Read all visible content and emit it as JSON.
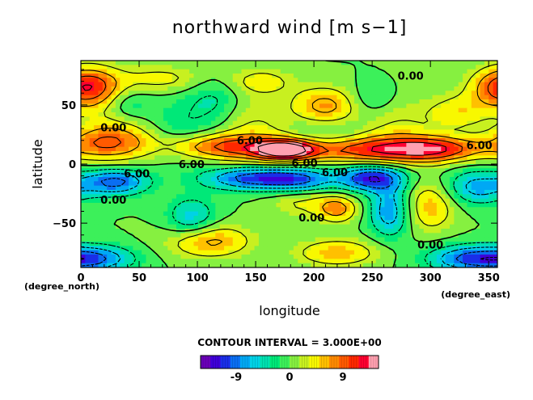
{
  "chart_data": {
    "type": "heatmap",
    "title": "northward wind [m s−1]",
    "xlabel": "longitude",
    "ylabel": "latitude",
    "x_unit": "(degree_north)",
    "x_unit_right": "(degree_east)",
    "xlim": [
      0,
      357.5
    ],
    "ylim": [
      -87.5,
      87.5
    ],
    "xticks": [
      0,
      50,
      100,
      150,
      200,
      250,
      300,
      350
    ],
    "yticks": [
      -50,
      0,
      50
    ],
    "contour_interval_text": "CONTOUR INTERVAL = 3.000E+00",
    "contour_labels": [
      {
        "text": "0.00",
        "x": 283,
        "y": 75
      },
      {
        "text": "0.00",
        "x": 28,
        "y": 31
      },
      {
        "text": "6.00",
        "x": 145,
        "y": 20
      },
      {
        "text": "6.00",
        "x": 342,
        "y": 16
      },
      {
        "text": "6.00",
        "x": 192,
        "y": 1
      },
      {
        "text": "6.00",
        "x": 218,
        "y": -7
      },
      {
        "text": "6.00",
        "x": 95,
        "y": 0
      },
      {
        "text": "6.00",
        "x": 48,
        "y": -8
      },
      {
        "text": "0.00",
        "x": 28,
        "y": -30
      },
      {
        "text": "0.00",
        "x": 198,
        "y": -45
      },
      {
        "text": "0.00",
        "x": 300,
        "y": -68
      }
    ],
    "colorbar": {
      "tick_labels": [
        "-9",
        "0",
        "9"
      ],
      "tick_values": [
        -9,
        0,
        9
      ],
      "min": -15,
      "max": 15,
      "colors": [
        "#6a00b8",
        "#3f00d8",
        "#1a2ee8",
        "#0a6ef2",
        "#00a8f4",
        "#00d2e6",
        "#00e0b0",
        "#00e878",
        "#3cf05a",
        "#86f040",
        "#c8f020",
        "#f8f800",
        "#ffc000",
        "#ff8a00",
        "#ff5a00",
        "#ff2800",
        "#ff0030",
        "#ffa0b0"
      ]
    },
    "field_centers": [
      {
        "x": 5,
        "y": 65,
        "a": 12,
        "sx": 20,
        "sy": 12
      },
      {
        "x": 70,
        "y": 72,
        "a": 4,
        "sx": 25,
        "sy": 8
      },
      {
        "x": 20,
        "y": 18,
        "a": 7,
        "sx": 28,
        "sy": 10
      },
      {
        "x": 115,
        "y": 15,
        "a": 9,
        "sx": 30,
        "sy": 8
      },
      {
        "x": 175,
        "y": 12,
        "a": 15,
        "sx": 18,
        "sy": 6
      },
      {
        "x": 245,
        "y": 12,
        "a": 11,
        "sx": 55,
        "sy": 8
      },
      {
        "x": 310,
        "y": 13,
        "a": 8,
        "sx": 25,
        "sy": 8
      },
      {
        "x": 210,
        "y": 48,
        "a": 9,
        "sx": 20,
        "sy": 12
      },
      {
        "x": 325,
        "y": 42,
        "a": 7,
        "sx": 20,
        "sy": 12
      },
      {
        "x": 155,
        "y": 70,
        "a": 4,
        "sx": 20,
        "sy": 8
      },
      {
        "x": 115,
        "y": 55,
        "a": -3,
        "sx": 15,
        "sy": 12
      },
      {
        "x": 40,
        "y": 50,
        "a": -4,
        "sx": 15,
        "sy": 10
      },
      {
        "x": 250,
        "y": 55,
        "a": -3,
        "sx": 15,
        "sy": 10
      },
      {
        "x": 30,
        "y": -15,
        "a": -10,
        "sx": 20,
        "sy": 8
      },
      {
        "x": 150,
        "y": -12,
        "a": -11,
        "sx": 30,
        "sy": 7
      },
      {
        "x": 250,
        "y": -12,
        "a": -12,
        "sx": 20,
        "sy": 8
      },
      {
        "x": 265,
        "y": -40,
        "a": -8,
        "sx": 12,
        "sy": 15
      },
      {
        "x": 95,
        "y": -45,
        "a": -6,
        "sx": 15,
        "sy": 12
      },
      {
        "x": 340,
        "y": -20,
        "a": -7,
        "sx": 20,
        "sy": 10
      },
      {
        "x": 10,
        "y": -80,
        "a": -9,
        "sx": 25,
        "sy": 8
      },
      {
        "x": 330,
        "y": -80,
        "a": -8,
        "sx": 25,
        "sy": 8
      },
      {
        "x": 190,
        "y": -15,
        "a": -7,
        "sx": 20,
        "sy": 8
      },
      {
        "x": 110,
        "y": -65,
        "a": 7,
        "sx": 25,
        "sy": 10
      },
      {
        "x": 220,
        "y": -75,
        "a": 6,
        "sx": 25,
        "sy": 8
      },
      {
        "x": 300,
        "y": -35,
        "a": 6,
        "sx": 15,
        "sy": 15
      },
      {
        "x": 220,
        "y": -38,
        "a": 7,
        "sx": 12,
        "sy": 8
      },
      {
        "x": 190,
        "y": -30,
        "a": 4,
        "sx": 20,
        "sy": 10
      }
    ]
  }
}
